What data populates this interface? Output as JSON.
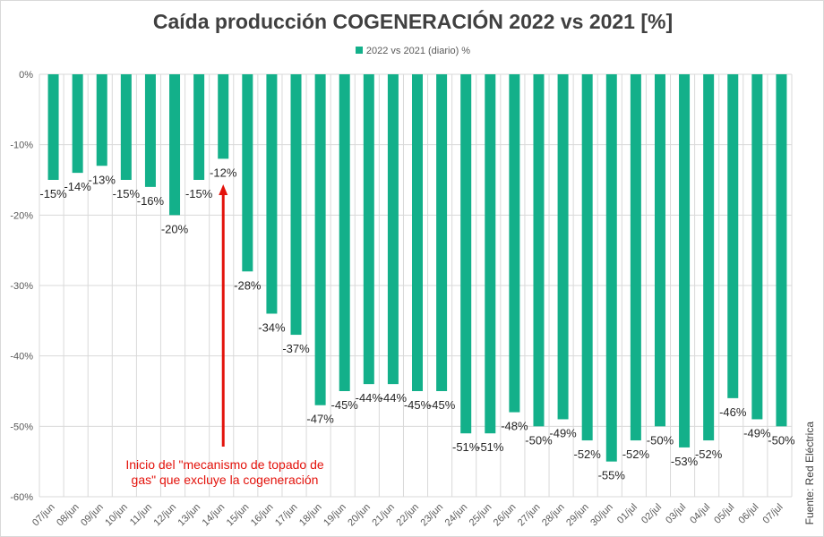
{
  "chart_data": {
    "type": "bar",
    "title": "Caída producción COGENERACIÓN 2022 vs 2021 [%]",
    "legend": {
      "position": "top",
      "entries": [
        "2022 vs 2021 (diario) %"
      ]
    },
    "series": [
      {
        "name": "2022 vs 2021 (diario) %",
        "color": "#13b08a",
        "values": [
          -15,
          -14,
          -13,
          -15,
          -16,
          -20,
          -15,
          -12,
          -28,
          -34,
          -37,
          -47,
          -45,
          -44,
          -44,
          -45,
          -45,
          -51,
          -51,
          -48,
          -50,
          -49,
          -52,
          -55,
          -52,
          -50,
          -53,
          -52,
          -46,
          -49,
          -50
        ]
      }
    ],
    "categories": [
      "07/jun",
      "08/jun",
      "09/jun",
      "10/jun",
      "11/jun",
      "12/jun",
      "13/jun",
      "14/jun",
      "15/jun",
      "16/jun",
      "17/jun",
      "18/jun",
      "19/jun",
      "20/jun",
      "21/jun",
      "22/jun",
      "23/jun",
      "24/jun",
      "25/jun",
      "26/jun",
      "27/jun",
      "28/jun",
      "29/jun",
      "30/jun",
      "01/jul",
      "02/jul",
      "03/jul",
      "04/jul",
      "05/jul",
      "06/jul",
      "07/jul"
    ],
    "ylim": [
      -60,
      0
    ],
    "yticks": [
      "0%",
      "-10%",
      "-20%",
      "-30%",
      "-40%",
      "-50%",
      "-60%"
    ],
    "grid": true,
    "annotation": {
      "text_line1": "Inicio del \"mecanismo de topado de",
      "text_line2": "gas\"  que excluye la cogeneración",
      "target_category": "14/jun",
      "color": "#e3120b"
    },
    "source": "Fuente: Red Eléctrica"
  }
}
